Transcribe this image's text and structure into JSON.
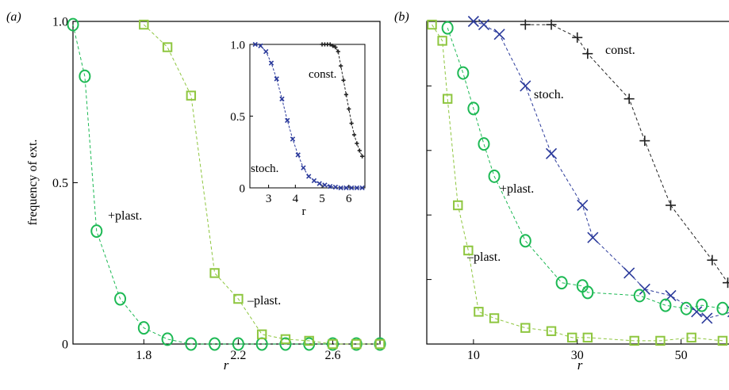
{
  "figure": {
    "panels": [
      "(a)",
      "(b)"
    ]
  },
  "chart_data": [
    {
      "type": "line",
      "panel": "(a)",
      "xlabel": "r",
      "ylabel": "frequency of ext.",
      "xlim": [
        1.5,
        2.8
      ],
      "ylim": [
        0,
        1.0
      ],
      "xticks": [
        1.8,
        2.2,
        2.6
      ],
      "xtick_labels": [
        "1.8",
        "2.2",
        "2.6"
      ],
      "yticks": [
        0,
        0.5,
        1.0
      ],
      "ytick_labels": [
        "0",
        "0.5",
        "1.0"
      ],
      "grid": false,
      "series": [
        {
          "name": "+plast.",
          "color": "#1db954",
          "marker": "circle",
          "x": [
            1.5,
            1.55,
            1.6,
            1.7,
            1.8,
            1.9,
            2.0,
            2.1,
            2.2,
            2.3,
            2.4,
            2.5,
            2.6,
            2.7,
            2.8
          ],
          "y": [
            0.99,
            0.83,
            0.35,
            0.14,
            0.05,
            0.015,
            0,
            0,
            0,
            0,
            0,
            0,
            0,
            0,
            0
          ]
        },
        {
          "name": "–plast.",
          "color": "#8ec63f",
          "marker": "square",
          "x": [
            1.8,
            1.9,
            2.0,
            2.1,
            2.2,
            2.3,
            2.4,
            2.5,
            2.6,
            2.7,
            2.8
          ],
          "y": [
            0.99,
            0.92,
            0.77,
            0.22,
            0.14,
            0.03,
            0.015,
            0.01,
            0,
            0,
            0
          ]
        }
      ]
    },
    {
      "type": "line",
      "panel": "(a) inset",
      "xlabel": "r",
      "xlim": [
        2.3,
        6.6
      ],
      "ylim": [
        0,
        1.0
      ],
      "xticks": [
        3,
        4,
        5,
        6
      ],
      "xtick_labels": [
        "3",
        "4",
        "5",
        "6"
      ],
      "yticks": [
        0,
        0.5,
        1.0
      ],
      "ytick_labels": [
        "0",
        "0.5",
        "1.0"
      ],
      "series": [
        {
          "name": "stoch.",
          "color": "#2b3a9b",
          "marker": "x",
          "x": [
            2.5,
            2.7,
            2.9,
            3.1,
            3.3,
            3.5,
            3.7,
            3.9,
            4.1,
            4.3,
            4.5,
            4.7,
            4.9,
            5.1,
            5.3,
            5.5,
            5.7,
            5.9,
            6.1,
            6.3,
            6.5
          ],
          "y": [
            1.0,
            0.99,
            0.95,
            0.87,
            0.76,
            0.62,
            0.47,
            0.34,
            0.23,
            0.14,
            0.08,
            0.05,
            0.03,
            0.02,
            0.01,
            0.005,
            0,
            0,
            0,
            0,
            0
          ]
        },
        {
          "name": "const.",
          "color": "#222222",
          "marker": "plus",
          "x": [
            5.0,
            5.1,
            5.2,
            5.3,
            5.4,
            5.5,
            5.6,
            5.7,
            5.8,
            5.9,
            6.0,
            6.1,
            6.2,
            6.3,
            6.4,
            6.5
          ],
          "y": [
            1.0,
            1.0,
            1.0,
            1.0,
            0.99,
            0.98,
            0.95,
            0.85,
            0.75,
            0.65,
            0.55,
            0.45,
            0.37,
            0.31,
            0.26,
            0.22
          ]
        }
      ]
    },
    {
      "type": "line",
      "panel": "(b)",
      "xlabel": "r",
      "xlim": [
        1,
        60
      ],
      "ylim": [
        0,
        1.0
      ],
      "xticks": [
        10,
        30,
        50
      ],
      "xtick_labels": [
        "10",
        "30",
        "50"
      ],
      "grid": false,
      "series": [
        {
          "name": "const.",
          "color": "#222222",
          "marker": "plus",
          "x": [
            20,
            25,
            30,
            32,
            40,
            43,
            48,
            56,
            59
          ],
          "y": [
            0.99,
            0.99,
            0.95,
            0.9,
            0.76,
            0.63,
            0.43,
            0.26,
            0.19
          ]
        },
        {
          "name": "stoch.",
          "color": "#2b3a9b",
          "marker": "x",
          "x": [
            10,
            12,
            15,
            20,
            25,
            31,
            33,
            40,
            43,
            48,
            53,
            55,
            60
          ],
          "y": [
            1.0,
            0.99,
            0.96,
            0.8,
            0.59,
            0.43,
            0.33,
            0.22,
            0.17,
            0.15,
            0.1,
            0.08,
            0.1
          ]
        },
        {
          "name": "+plast.",
          "color": "#1db954",
          "marker": "circle",
          "x": [
            5,
            8,
            10,
            12,
            14,
            20,
            27,
            31,
            32,
            42,
            47,
            51,
            54,
            58
          ],
          "y": [
            0.98,
            0.84,
            0.73,
            0.62,
            0.52,
            0.32,
            0.19,
            0.18,
            0.16,
            0.15,
            0.12,
            0.11,
            0.12,
            0.11
          ]
        },
        {
          "name": "–plast.",
          "color": "#8ec63f",
          "marker": "square",
          "x": [
            2,
            4,
            5,
            7,
            9,
            11,
            14,
            20,
            25,
            29,
            32,
            41,
            46,
            52,
            58
          ],
          "y": [
            0.99,
            0.94,
            0.76,
            0.43,
            0.29,
            0.1,
            0.08,
            0.05,
            0.04,
            0.02,
            0.02,
            0.01,
            0.01,
            0.02,
            0.01
          ]
        }
      ]
    }
  ],
  "annotations": {
    "a_plus_plast": "+plast.",
    "a_minus_plast": "–plast.",
    "inset_const": "const.",
    "inset_stoch": "stoch.",
    "b_const": "const.",
    "b_stoch": "stoch.",
    "b_plus_plast": "+plast.",
    "b_minus_plast": "–plast."
  }
}
